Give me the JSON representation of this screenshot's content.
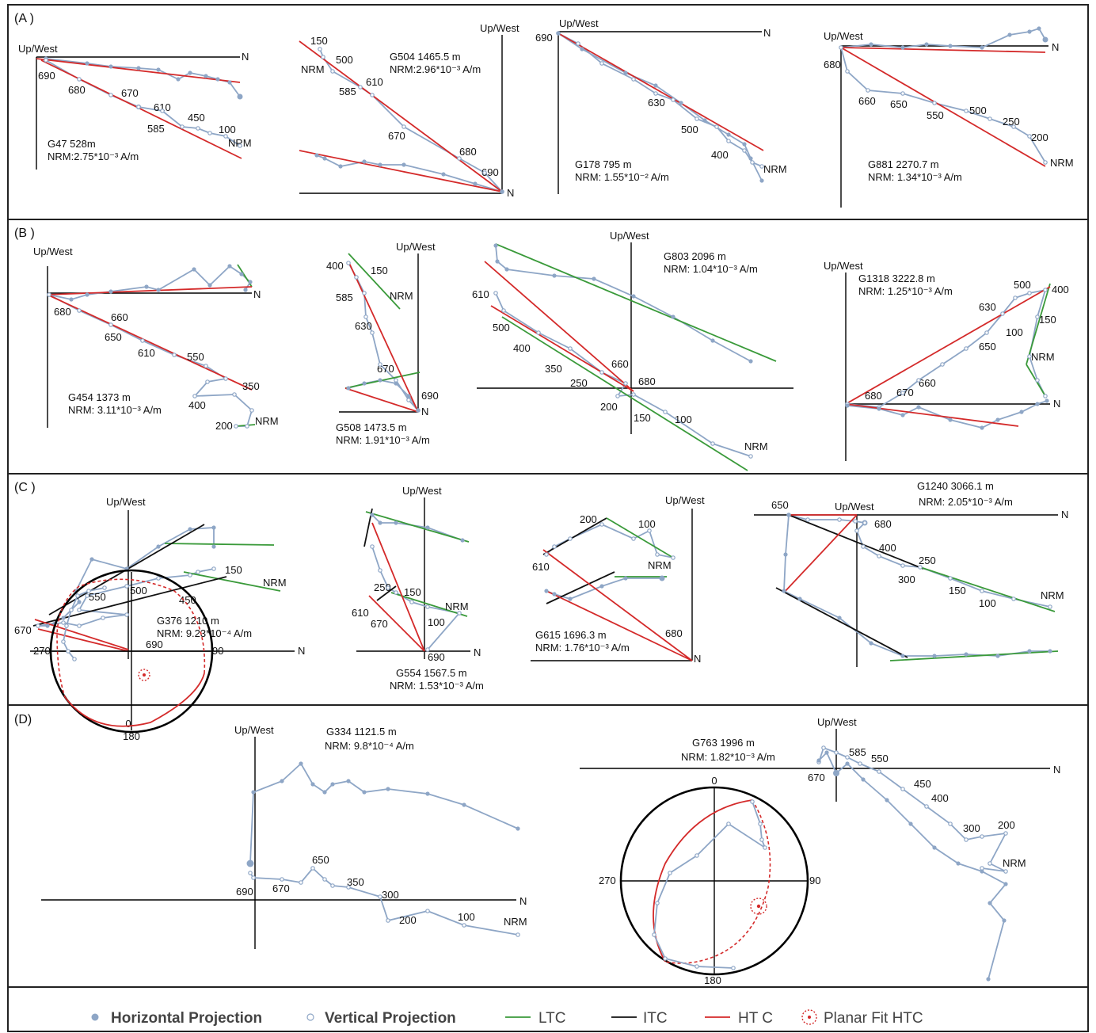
{
  "panels": {
    "A": {
      "label": "(A )"
    },
    "B": {
      "label": "(B )"
    },
    "C": {
      "label": "(C )"
    },
    "D": {
      "label": "(D)"
    }
  },
  "common": {
    "upwest": "Up/West",
    "north": "N",
    "nrm": "NRM"
  },
  "plots": {
    "a1": {
      "title": "G47 528m",
      "nrm": "NRM:2.75*10⁻³ A/m",
      "steps": [
        "690",
        "680",
        "670",
        "610",
        "585",
        "450",
        "100"
      ]
    },
    "a2": {
      "title": "G504 1465.5 m",
      "nrm": "NRM:2.96*10⁻³ A/m",
      "steps": [
        "150",
        "500",
        "610",
        "585",
        "670",
        "680",
        "690"
      ]
    },
    "a3": {
      "title": "G178 795 m",
      "nrm": "NRM: 1.55*10⁻² A/m",
      "steps": [
        "690",
        "630",
        "500",
        "400"
      ]
    },
    "a4": {
      "title": "G881 2270.7 m",
      "nrm": "NRM: 1.34*10⁻³ A/m",
      "steps": [
        "680",
        "660",
        "650",
        "550",
        "500",
        "250",
        "200"
      ]
    },
    "b1": {
      "title": "G454 1373 m",
      "nrm": "NRM: 3.11*10⁻³ A/m",
      "steps": [
        "680",
        "660",
        "650",
        "610",
        "550",
        "350",
        "400",
        "200"
      ]
    },
    "b2": {
      "title": "G508 1473.5 m",
      "nrm": "NRM: 1.91*10⁻³ A/m",
      "steps": [
        "400",
        "150",
        "585",
        "630",
        "670",
        "690"
      ]
    },
    "b3": {
      "title": "G803 2096 m",
      "nrm": "NRM: 1.04*10⁻³ A/m",
      "steps": [
        "610",
        "500",
        "400",
        "350",
        "250",
        "660",
        "680",
        "200",
        "150",
        "100"
      ]
    },
    "b4": {
      "title": "G1318 3222.8 m",
      "nrm": "NRM: 1.25*10⁻³ A/m",
      "steps": [
        "500",
        "400",
        "630",
        "150",
        "100",
        "650",
        "660",
        "670",
        "680"
      ]
    },
    "c1": {
      "title": "G376 1210 m",
      "nrm": "NRM: 9.23*10⁻⁴ A/m",
      "steps": [
        "150",
        "550",
        "500",
        "450",
        "670",
        "690"
      ]
    },
    "c2": {
      "title": "G554 1567.5 m",
      "nrm": "NRM: 1.53*10⁻³ A/m",
      "steps": [
        "250",
        "150",
        "610",
        "670",
        "100",
        "690"
      ]
    },
    "c3": {
      "title": "G615 1696.3 m",
      "nrm": "NRM: 1.76*10⁻³ A/m",
      "steps": [
        "200",
        "100",
        "610",
        "680"
      ]
    },
    "c4": {
      "title": "G1240 3066.1 m",
      "nrm": "NRM: 2.05*10⁻³ A/m",
      "steps": [
        "650",
        "680",
        "400",
        "300",
        "250",
        "150",
        "100"
      ]
    },
    "d1": {
      "title": "G334 1121.5 m",
      "nrm": "NRM: 9.8*10⁻⁴ A/m",
      "steps": [
        "650",
        "690",
        "670",
        "350",
        "300",
        "200",
        "100"
      ]
    },
    "d2": {
      "title": "G763 1996 m",
      "nrm": "NRM: 1.82*10⁻³ A/m",
      "steps": [
        "585",
        "550",
        "670",
        "450",
        "400",
        "300",
        "200"
      ]
    }
  },
  "stereonets": {
    "s1": {
      "n": "0",
      "e": "90",
      "s": "180",
      "w": "270"
    },
    "s2": {
      "n": "0",
      "e": "90",
      "s": "180",
      "w": "270"
    }
  },
  "legend": {
    "horizontal": "Horizontal Projection",
    "vertical": "Vertical Projection",
    "ltc": "LTC",
    "itc": "ITC",
    "htc": "HT C",
    "planar": "Planar Fit HTC"
  },
  "colors": {
    "data": "#8ea6c6",
    "ltc": "#3a9a3a",
    "itc": "#111111",
    "htc": "#d42a2a"
  }
}
